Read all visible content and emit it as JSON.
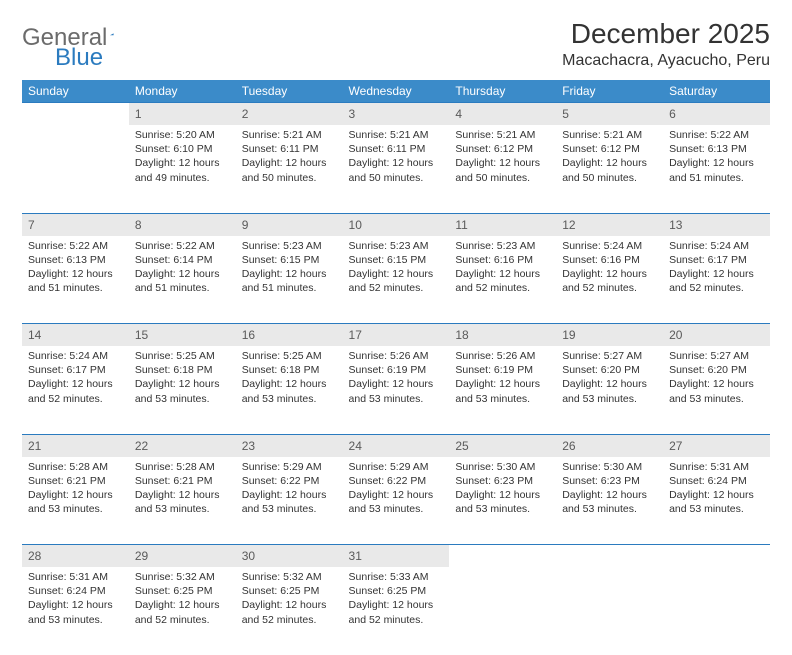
{
  "logo": {
    "part1": "General",
    "part2": "Blue"
  },
  "title": "December 2025",
  "location": "Macachacra, Ayacucho, Peru",
  "colors": {
    "header_bg": "#3b8bc9",
    "header_text": "#ffffff",
    "daynum_bg": "#e9e9e9",
    "border": "#2b7bbf",
    "logo_gray": "#6b6b6b",
    "logo_blue": "#2b7bbf"
  },
  "weekdays": [
    "Sunday",
    "Monday",
    "Tuesday",
    "Wednesday",
    "Thursday",
    "Friday",
    "Saturday"
  ],
  "weeks": [
    [
      null,
      {
        "n": "1",
        "sunrise": "5:20 AM",
        "sunset": "6:10 PM",
        "daylight": "12 hours and 49 minutes."
      },
      {
        "n": "2",
        "sunrise": "5:21 AM",
        "sunset": "6:11 PM",
        "daylight": "12 hours and 50 minutes."
      },
      {
        "n": "3",
        "sunrise": "5:21 AM",
        "sunset": "6:11 PM",
        "daylight": "12 hours and 50 minutes."
      },
      {
        "n": "4",
        "sunrise": "5:21 AM",
        "sunset": "6:12 PM",
        "daylight": "12 hours and 50 minutes."
      },
      {
        "n": "5",
        "sunrise": "5:21 AM",
        "sunset": "6:12 PM",
        "daylight": "12 hours and 50 minutes."
      },
      {
        "n": "6",
        "sunrise": "5:22 AM",
        "sunset": "6:13 PM",
        "daylight": "12 hours and 51 minutes."
      }
    ],
    [
      {
        "n": "7",
        "sunrise": "5:22 AM",
        "sunset": "6:13 PM",
        "daylight": "12 hours and 51 minutes."
      },
      {
        "n": "8",
        "sunrise": "5:22 AM",
        "sunset": "6:14 PM",
        "daylight": "12 hours and 51 minutes."
      },
      {
        "n": "9",
        "sunrise": "5:23 AM",
        "sunset": "6:15 PM",
        "daylight": "12 hours and 51 minutes."
      },
      {
        "n": "10",
        "sunrise": "5:23 AM",
        "sunset": "6:15 PM",
        "daylight": "12 hours and 52 minutes."
      },
      {
        "n": "11",
        "sunrise": "5:23 AM",
        "sunset": "6:16 PM",
        "daylight": "12 hours and 52 minutes."
      },
      {
        "n": "12",
        "sunrise": "5:24 AM",
        "sunset": "6:16 PM",
        "daylight": "12 hours and 52 minutes."
      },
      {
        "n": "13",
        "sunrise": "5:24 AM",
        "sunset": "6:17 PM",
        "daylight": "12 hours and 52 minutes."
      }
    ],
    [
      {
        "n": "14",
        "sunrise": "5:24 AM",
        "sunset": "6:17 PM",
        "daylight": "12 hours and 52 minutes."
      },
      {
        "n": "15",
        "sunrise": "5:25 AM",
        "sunset": "6:18 PM",
        "daylight": "12 hours and 53 minutes."
      },
      {
        "n": "16",
        "sunrise": "5:25 AM",
        "sunset": "6:18 PM",
        "daylight": "12 hours and 53 minutes."
      },
      {
        "n": "17",
        "sunrise": "5:26 AM",
        "sunset": "6:19 PM",
        "daylight": "12 hours and 53 minutes."
      },
      {
        "n": "18",
        "sunrise": "5:26 AM",
        "sunset": "6:19 PM",
        "daylight": "12 hours and 53 minutes."
      },
      {
        "n": "19",
        "sunrise": "5:27 AM",
        "sunset": "6:20 PM",
        "daylight": "12 hours and 53 minutes."
      },
      {
        "n": "20",
        "sunrise": "5:27 AM",
        "sunset": "6:20 PM",
        "daylight": "12 hours and 53 minutes."
      }
    ],
    [
      {
        "n": "21",
        "sunrise": "5:28 AM",
        "sunset": "6:21 PM",
        "daylight": "12 hours and 53 minutes."
      },
      {
        "n": "22",
        "sunrise": "5:28 AM",
        "sunset": "6:21 PM",
        "daylight": "12 hours and 53 minutes."
      },
      {
        "n": "23",
        "sunrise": "5:29 AM",
        "sunset": "6:22 PM",
        "daylight": "12 hours and 53 minutes."
      },
      {
        "n": "24",
        "sunrise": "5:29 AM",
        "sunset": "6:22 PM",
        "daylight": "12 hours and 53 minutes."
      },
      {
        "n": "25",
        "sunrise": "5:30 AM",
        "sunset": "6:23 PM",
        "daylight": "12 hours and 53 minutes."
      },
      {
        "n": "26",
        "sunrise": "5:30 AM",
        "sunset": "6:23 PM",
        "daylight": "12 hours and 53 minutes."
      },
      {
        "n": "27",
        "sunrise": "5:31 AM",
        "sunset": "6:24 PM",
        "daylight": "12 hours and 53 minutes."
      }
    ],
    [
      {
        "n": "28",
        "sunrise": "5:31 AM",
        "sunset": "6:24 PM",
        "daylight": "12 hours and 53 minutes."
      },
      {
        "n": "29",
        "sunrise": "5:32 AM",
        "sunset": "6:25 PM",
        "daylight": "12 hours and 52 minutes."
      },
      {
        "n": "30",
        "sunrise": "5:32 AM",
        "sunset": "6:25 PM",
        "daylight": "12 hours and 52 minutes."
      },
      {
        "n": "31",
        "sunrise": "5:33 AM",
        "sunset": "6:25 PM",
        "daylight": "12 hours and 52 minutes."
      },
      null,
      null,
      null
    ]
  ],
  "labels": {
    "sunrise": "Sunrise: ",
    "sunset": "Sunset: ",
    "daylight": "Daylight: "
  }
}
